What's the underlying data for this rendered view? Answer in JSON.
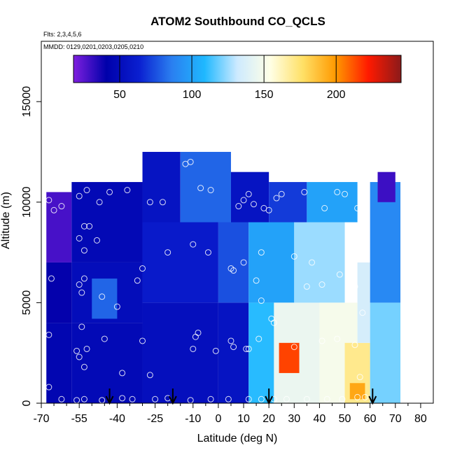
{
  "chart_data": {
    "type": "heatmap",
    "title": "ATOM2 Southbound CO_QCLS",
    "flights_note": "Flts: 2,3,4,5,6",
    "dates_note": "MMDD: 0129,0201,0203,0205,0210",
    "xlabel": "Latitude (deg N)",
    "ylabel": "Altitude (m)",
    "xlim": [
      -70,
      85
    ],
    "ylim": [
      0,
      18000
    ],
    "x_ticks": [
      -70,
      -55,
      -40,
      -25,
      -10,
      0,
      10,
      20,
      30,
      40,
      50,
      60,
      70,
      80
    ],
    "y_ticks": [
      0,
      5000,
      10000,
      15000
    ],
    "colorbar": {
      "range": [
        18,
        245
      ],
      "ticks": [
        50,
        100,
        150,
        200
      ],
      "colors": [
        "#7f1fdf",
        "#0000aa",
        "#0a1fd0",
        "#2a7ff0",
        "#1fb8ff",
        "#cdeaff",
        "#ffffe6",
        "#ffe066",
        "#ff9900",
        "#ff1a00",
        "#8b1a1a"
      ]
    },
    "co_field": [
      {
        "lat": [
          -68,
          -58
        ],
        "alt": [
          0,
          4000
        ],
        "co": 45
      },
      {
        "lat": [
          -68,
          -58
        ],
        "alt": [
          4000,
          7000
        ],
        "co": 40
      },
      {
        "lat": [
          -68,
          -58
        ],
        "alt": [
          7000,
          10500
        ],
        "co": 28
      },
      {
        "lat": [
          -58,
          -30
        ],
        "alt": [
          0,
          4000
        ],
        "co": 48
      },
      {
        "lat": [
          -58,
          -30
        ],
        "alt": [
          4000,
          7000
        ],
        "co": 50
      },
      {
        "lat": [
          -58,
          -30
        ],
        "alt": [
          7000,
          11000
        ],
        "co": 47
      },
      {
        "lat": [
          -50,
          -40
        ],
        "alt": [
          4200,
          6200
        ],
        "co": 80
      },
      {
        "lat": [
          -30,
          0
        ],
        "alt": [
          0,
          5000
        ],
        "co": 52
      },
      {
        "lat": [
          -30,
          0
        ],
        "alt": [
          5000,
          9000
        ],
        "co": 60
      },
      {
        "lat": [
          -30,
          -15
        ],
        "alt": [
          9000,
          12500
        ],
        "co": 55
      },
      {
        "lat": [
          -15,
          5
        ],
        "alt": [
          9000,
          12500
        ],
        "co": 80
      },
      {
        "lat": [
          0,
          12
        ],
        "alt": [
          0,
          5000
        ],
        "co": 55
      },
      {
        "lat": [
          0,
          12
        ],
        "alt": [
          5000,
          9000
        ],
        "co": 75
      },
      {
        "lat": [
          5,
          20
        ],
        "alt": [
          9000,
          11500
        ],
        "co": 55
      },
      {
        "lat": [
          12,
          22
        ],
        "alt": [
          0,
          5000
        ],
        "co": 110
      },
      {
        "lat": [
          12,
          30
        ],
        "alt": [
          5000,
          9000
        ],
        "co": 100
      },
      {
        "lat": [
          20,
          35
        ],
        "alt": [
          9000,
          11000
        ],
        "co": 70
      },
      {
        "lat": [
          22,
          40
        ],
        "alt": [
          0,
          5000
        ],
        "co": 145
      },
      {
        "lat": [
          30,
          50
        ],
        "alt": [
          5000,
          9000
        ],
        "co": 125
      },
      {
        "lat": [
          35,
          55
        ],
        "alt": [
          9000,
          11000
        ],
        "co": 100
      },
      {
        "lat": [
          24,
          32
        ],
        "alt": [
          1500,
          3000
        ],
        "co": 215
      },
      {
        "lat": [
          40,
          55
        ],
        "alt": [
          0,
          5000
        ],
        "co": 150
      },
      {
        "lat": [
          50,
          60
        ],
        "alt": [
          0,
          3000
        ],
        "co": 170
      },
      {
        "lat": [
          52,
          58
        ],
        "alt": [
          200,
          1000
        ],
        "co": 195
      },
      {
        "lat": [
          55,
          60
        ],
        "alt": [
          3000,
          7000
        ],
        "co": 135
      },
      {
        "lat": [
          60,
          72
        ],
        "alt": [
          0,
          5000
        ],
        "co": 120
      },
      {
        "lat": [
          60,
          72
        ],
        "alt": [
          5000,
          11000
        ],
        "co": 90
      },
      {
        "lat": [
          63,
          70
        ],
        "alt": [
          10000,
          11500
        ],
        "co": 30
      }
    ],
    "sample_points": [
      {
        "lat": -67,
        "alt": 10100
      },
      {
        "lat": -65,
        "alt": 9600
      },
      {
        "lat": -62,
        "alt": 9800
      },
      {
        "lat": -66,
        "alt": 6200
      },
      {
        "lat": -67,
        "alt": 3400
      },
      {
        "lat": -67,
        "alt": 800
      },
      {
        "lat": -54,
        "alt": 11900
      },
      {
        "lat": -52,
        "alt": 12200
      },
      {
        "lat": -55,
        "alt": 10300
      },
      {
        "lat": -52,
        "alt": 10600
      },
      {
        "lat": -53,
        "alt": 8800
      },
      {
        "lat": -51,
        "alt": 8800
      },
      {
        "lat": -55,
        "alt": 8200
      },
      {
        "lat": -53,
        "alt": 7600
      },
      {
        "lat": -48,
        "alt": 8100
      },
      {
        "lat": -55,
        "alt": 5900
      },
      {
        "lat": -53,
        "alt": 6200
      },
      {
        "lat": -54,
        "alt": 5500
      },
      {
        "lat": -46,
        "alt": 5300
      },
      {
        "lat": -40,
        "alt": 4800
      },
      {
        "lat": -54,
        "alt": 3800
      },
      {
        "lat": -56,
        "alt": 2600
      },
      {
        "lat": -55,
        "alt": 2300
      },
      {
        "lat": -53,
        "alt": 1800
      },
      {
        "lat": -52,
        "alt": 2700
      },
      {
        "lat": -45,
        "alt": 3200
      },
      {
        "lat": -38,
        "alt": 1500
      },
      {
        "lat": -30,
        "alt": 3100
      },
      {
        "lat": -27,
        "alt": 1400
      },
      {
        "lat": -47,
        "alt": 10000
      },
      {
        "lat": -43,
        "alt": 10500
      },
      {
        "lat": -36,
        "alt": 10600
      },
      {
        "lat": -30,
        "alt": 6700
      },
      {
        "lat": -32,
        "alt": 6100
      },
      {
        "lat": -27,
        "alt": 10000
      },
      {
        "lat": -22,
        "alt": 10000
      },
      {
        "lat": -20,
        "alt": 7500
      },
      {
        "lat": -13,
        "alt": 11900
      },
      {
        "lat": -11,
        "alt": 12000
      },
      {
        "lat": -10,
        "alt": 7900
      },
      {
        "lat": -7,
        "alt": 10700
      },
      {
        "lat": -3,
        "alt": 10600
      },
      {
        "lat": -4,
        "alt": 7500
      },
      {
        "lat": -9,
        "alt": 3300
      },
      {
        "lat": -8,
        "alt": 3500
      },
      {
        "lat": -10,
        "alt": 2700
      },
      {
        "lat": -1,
        "alt": 2600
      },
      {
        "lat": 5,
        "alt": 3100
      },
      {
        "lat": 6,
        "alt": 2800
      },
      {
        "lat": 5,
        "alt": 6700
      },
      {
        "lat": 6,
        "alt": 6600
      },
      {
        "lat": 8,
        "alt": 9800
      },
      {
        "lat": 10,
        "alt": 10100
      },
      {
        "lat": 12,
        "alt": 10400
      },
      {
        "lat": 14,
        "alt": 9900
      },
      {
        "lat": 10,
        "alt": 7000
      },
      {
        "lat": 15,
        "alt": 6100
      },
      {
        "lat": 17,
        "alt": 7500
      },
      {
        "lat": 18,
        "alt": 9700
      },
      {
        "lat": 20,
        "alt": 9600
      },
      {
        "lat": 23,
        "alt": 10200
      },
      {
        "lat": 25,
        "alt": 10400
      },
      {
        "lat": 17,
        "alt": 5100
      },
      {
        "lat": 21,
        "alt": 4200
      },
      {
        "lat": 22,
        "alt": 4000
      },
      {
        "lat": 11,
        "alt": 2700
      },
      {
        "lat": 12,
        "alt": 2700
      },
      {
        "lat": 16,
        "alt": 3200
      },
      {
        "lat": 30,
        "alt": 2800
      },
      {
        "lat": 35,
        "alt": 5800
      },
      {
        "lat": 41,
        "alt": 5900
      },
      {
        "lat": 37,
        "alt": 7000
      },
      {
        "lat": 30,
        "alt": 7300
      },
      {
        "lat": 34,
        "alt": 10500
      },
      {
        "lat": 42,
        "alt": 9700
      },
      {
        "lat": 47,
        "alt": 10500
      },
      {
        "lat": 50,
        "alt": 10400
      },
      {
        "lat": 55,
        "alt": 9700
      },
      {
        "lat": 48,
        "alt": 6400
      },
      {
        "lat": 54,
        "alt": 5800
      },
      {
        "lat": 57,
        "alt": 4500
      },
      {
        "lat": 41,
        "alt": 3100
      },
      {
        "lat": 47,
        "alt": 3200
      },
      {
        "lat": 54,
        "alt": 2900
      },
      {
        "lat": 56,
        "alt": 1300
      },
      {
        "lat": 55,
        "alt": 300
      },
      {
        "lat": 58,
        "alt": 300
      },
      {
        "lat": -62,
        "alt": 200
      },
      {
        "lat": -56,
        "alt": 150
      },
      {
        "lat": -53,
        "alt": 200
      },
      {
        "lat": -46,
        "alt": 150
      },
      {
        "lat": -38,
        "alt": 250
      },
      {
        "lat": -34,
        "alt": 200
      },
      {
        "lat": -25,
        "alt": 200
      },
      {
        "lat": -20,
        "alt": 250
      },
      {
        "lat": -11,
        "alt": 150
      },
      {
        "lat": -3,
        "alt": 200
      },
      {
        "lat": 4,
        "alt": 200
      },
      {
        "lat": 12,
        "alt": 200
      },
      {
        "lat": 17,
        "alt": 200
      },
      {
        "lat": 22,
        "alt": 200
      },
      {
        "lat": 27,
        "alt": 200
      },
      {
        "lat": 35,
        "alt": 200
      },
      {
        "lat": 43,
        "alt": 200
      },
      {
        "lat": 49,
        "alt": 200
      }
    ],
    "arrows_lat": [
      -43,
      -18,
      20,
      61
    ]
  }
}
